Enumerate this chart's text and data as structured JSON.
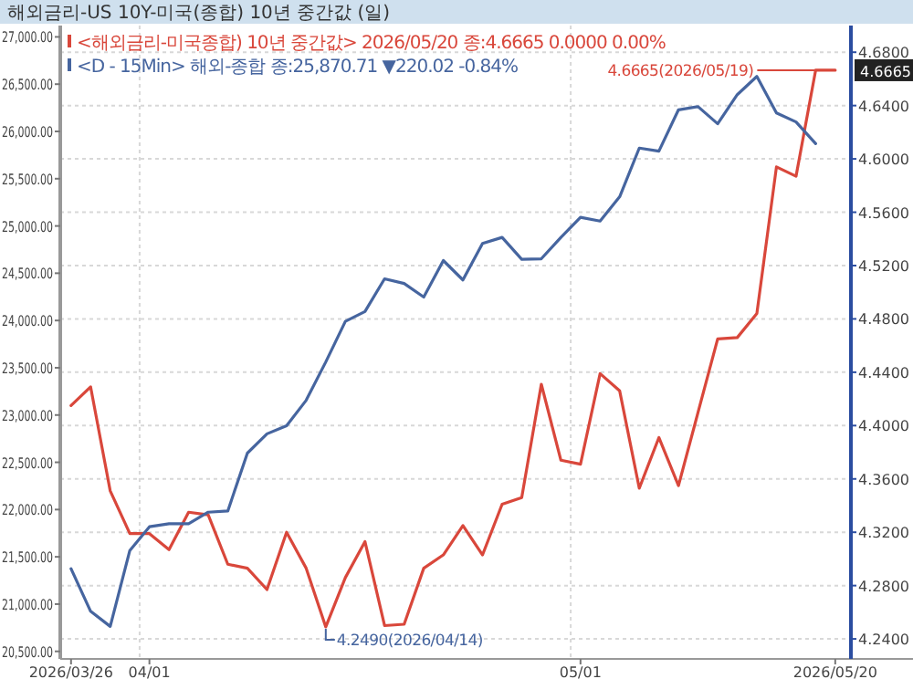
{
  "chart_data": {
    "type": "line",
    "title": "해외금리-US      10Y-미국(종합) 10년 중간값 (일)",
    "categories": [
      "2026/03/26",
      null,
      null,
      null,
      "04/01",
      null,
      null,
      null,
      null,
      null,
      null,
      null,
      null,
      null,
      null,
      null,
      null,
      null,
      null,
      null,
      null,
      null,
      null,
      null,
      null,
      null,
      "05/01",
      null,
      null,
      null,
      null,
      null,
      null,
      null,
      null,
      null,
      null,
      null,
      null,
      "2026/05/20"
    ],
    "series": [
      {
        "name": "<해외금리-미국종합) 10년 중간값> 2026/05/20 종:4.6665  0.0000 0.00%",
        "color": "#d9473b",
        "axis": "y2",
        "values": [
          4.415,
          4.429,
          4.351,
          4.319,
          4.319,
          4.307,
          4.335,
          4.333,
          4.296,
          4.293,
          4.277,
          4.32,
          4.293,
          4.249,
          4.286,
          4.313,
          4.25,
          4.251,
          4.293,
          4.303,
          4.325,
          4.303,
          4.341,
          4.346,
          4.431,
          4.374,
          4.371,
          4.439,
          4.426,
          4.353,
          4.391,
          4.355,
          4.41,
          4.465,
          4.466,
          4.484,
          4.594,
          4.587,
          4.6665,
          4.6665
        ]
      },
      {
        "name": "<D - 15Min> 해외-종합 종:25,870.71 ▼220.02 -0.84%",
        "color": "#46659f",
        "values": [
          21374,
          20924,
          20764,
          21567,
          21818,
          21850,
          21850,
          21972,
          21985,
          22597,
          22801,
          22886,
          23156,
          23561,
          23991,
          24094,
          24441,
          24391,
          24248,
          24634,
          24429,
          24815,
          24879,
          24647,
          24653,
          24879,
          25091,
          25052,
          25309,
          25824,
          25791,
          26229,
          26262,
          26081,
          26389,
          26582,
          26196,
          26100,
          25871,
          null
        ]
      }
    ],
    "ylim": [
      20420,
      27120
    ],
    "yticks": [
      {
        "value": 20500,
        "label": "20,500.00"
      },
      {
        "value": 21000,
        "label": "21,000.00"
      },
      {
        "value": 21500,
        "label": "21,500.00"
      },
      {
        "value": 22000,
        "label": "22,000.00"
      },
      {
        "value": 22500,
        "label": "22,500.00"
      },
      {
        "value": 23000,
        "label": "23,000.00"
      },
      {
        "value": 23500,
        "label": "23,500.00"
      },
      {
        "value": 24000,
        "label": "24,000.00"
      },
      {
        "value": 24500,
        "label": "24,500.00"
      },
      {
        "value": 25000,
        "label": "25,000.00"
      },
      {
        "value": 25500,
        "label": "25,500.00"
      },
      {
        "value": 26000,
        "label": "26,000.00"
      },
      {
        "value": 26500,
        "label": "26,500.00"
      },
      {
        "value": 27000,
        "label": "27,000.00"
      }
    ],
    "y2lim": [
      4.225,
      4.7
    ],
    "y2ticks": [
      {
        "value": 4.24,
        "label": "4.2400"
      },
      {
        "value": 4.28,
        "label": "4.2800"
      },
      {
        "value": 4.32,
        "label": "4.3200"
      },
      {
        "value": 4.36,
        "label": "4.3600"
      },
      {
        "value": 4.4,
        "label": "4.4000"
      },
      {
        "value": 4.44,
        "label": "4.4400"
      },
      {
        "value": 4.48,
        "label": "4.4800"
      },
      {
        "value": 4.52,
        "label": "4.5200"
      },
      {
        "value": 4.56,
        "label": "4.5600"
      },
      {
        "value": 4.6,
        "label": "4.6000"
      },
      {
        "value": 4.64,
        "label": "4.6400"
      },
      {
        "value": 4.68,
        "label": "4.6800"
      }
    ],
    "annotations": [
      "4.6665(2026/05/19)",
      "4.2490(2026/04/14)",
      "4.6665"
    ],
    "grid": true,
    "legend": "top left",
    "marker": "none",
    "line_style": "solid"
  }
}
